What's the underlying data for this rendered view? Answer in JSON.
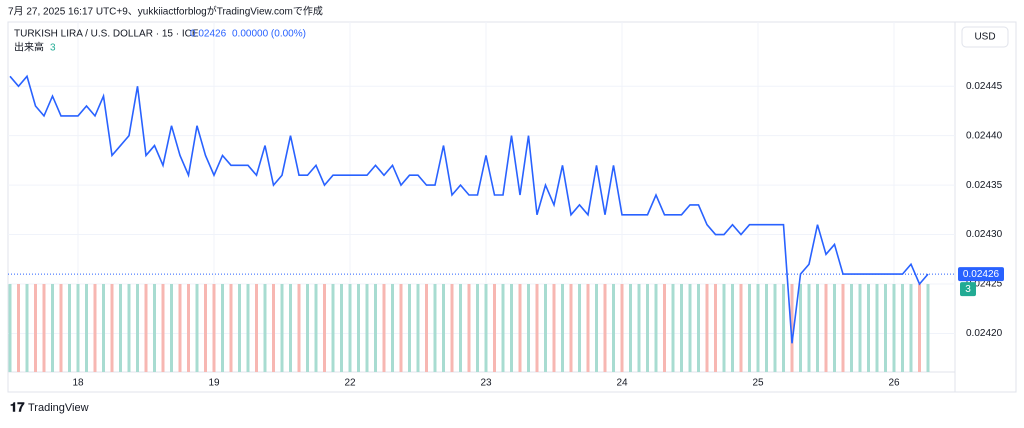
{
  "header": "7月 27, 2025 16:17 UTC+9、yukkiiactforblogがTradingView.comで作成",
  "legend": {
    "symbol": "TURKISH LIRA / U.S. DOLLAR · 15 · ICE",
    "last": "0.02426",
    "change": "0.00000 (0.00%)",
    "volume_label": "出来高",
    "volume_value": "3"
  },
  "currency": "USD",
  "brand": "TradingView",
  "chart_data": {
    "type": "line",
    "color": "#2962ff",
    "grid": true,
    "ylim": [
      0.02416,
      0.02452
    ],
    "yticks": [
      {
        "value": 0.0242,
        "label": "0.02420"
      },
      0.02425,
      {
        "value": 0.0243,
        "label": "0.02430"
      },
      0.02435,
      {
        "value": 0.0244,
        "label": "0.02440"
      },
      0.02445
    ],
    "xlim": [
      -0.6,
      109
    ],
    "xticks": [
      {
        "value": 8,
        "label": "18"
      },
      {
        "value": 24,
        "label": "19"
      },
      {
        "value": 40,
        "label": "22"
      },
      {
        "value": 56,
        "label": "23"
      },
      {
        "value": 72,
        "label": "24"
      },
      {
        "value": 88,
        "label": "25"
      },
      {
        "value": 104,
        "label": "26"
      }
    ],
    "series": [
      {
        "name": "TURKISH LIRA / U.S. DOLLAR",
        "color": "#2962ff",
        "values": [
          0.02446,
          0.02445,
          0.02446,
          0.02443,
          0.02442,
          0.02444,
          0.02442,
          0.02442,
          0.02442,
          0.02443,
          0.02442,
          0.02444,
          0.02438,
          0.02439,
          0.0244,
          0.02445,
          0.02438,
          0.02439,
          0.02437,
          0.02441,
          0.02438,
          0.02436,
          0.02441,
          0.02438,
          0.02436,
          0.02438,
          0.02437,
          0.02437,
          0.02437,
          0.02436,
          0.02439,
          0.02435,
          0.02436,
          0.0244,
          0.02436,
          0.02436,
          0.02437,
          0.02435,
          0.02436,
          0.02436,
          0.02436,
          0.02436,
          0.02436,
          0.02437,
          0.02436,
          0.02437,
          0.02435,
          0.02436,
          0.02436,
          0.02435,
          0.02435,
          0.02439,
          0.02434,
          0.02435,
          0.02434,
          0.02434,
          0.02438,
          0.02434,
          0.02434,
          0.0244,
          0.02434,
          0.0244,
          0.02432,
          0.02435,
          0.02433,
          0.02437,
          0.02432,
          0.02433,
          0.02432,
          0.02437,
          0.02432,
          0.02437,
          0.02432,
          0.02432,
          0.02432,
          0.02432,
          0.02434,
          0.02432,
          0.02432,
          0.02432,
          0.02433,
          0.02433,
          0.02431,
          0.0243,
          0.0243,
          0.02431,
          0.0243,
          0.02431,
          0.02431,
          0.02431,
          0.02431,
          0.02431,
          0.02419,
          0.02426,
          0.02427,
          0.02431,
          0.02428,
          0.02429,
          0.02426,
          0.02426,
          0.02426,
          0.02426,
          0.02426,
          0.02426,
          0.02426,
          0.02426,
          0.02427,
          0.02425,
          0.02426
        ]
      }
    ],
    "volume": {
      "name": "出来高",
      "values": [
        3,
        3,
        3,
        3,
        3,
        3,
        3,
        3,
        3,
        3,
        3,
        3,
        3,
        3,
        3,
        3,
        3,
        3,
        3,
        3,
        3,
        3,
        3,
        3,
        3,
        3,
        3,
        3,
        3,
        3,
        3,
        3,
        3,
        3,
        3,
        3,
        3,
        3,
        3,
        3,
        3,
        3,
        3,
        3,
        3,
        3,
        3,
        3,
        3,
        3,
        3,
        3,
        3,
        3,
        3,
        3,
        3,
        3,
        3,
        3,
        3,
        3,
        3,
        3,
        3,
        3,
        3,
        3,
        3,
        3,
        3,
        3,
        3,
        3,
        3,
        3,
        3,
        3,
        3,
        3,
        3,
        3,
        3,
        3,
        3,
        3,
        3,
        3,
        3,
        3,
        3,
        3,
        3,
        3,
        3,
        3,
        3,
        3,
        3,
        3,
        3,
        3,
        3,
        3,
        3,
        3,
        3,
        3,
        3
      ],
      "up_color": "#a8dcd1",
      "down_color": "#f7b7b2"
    }
  }
}
